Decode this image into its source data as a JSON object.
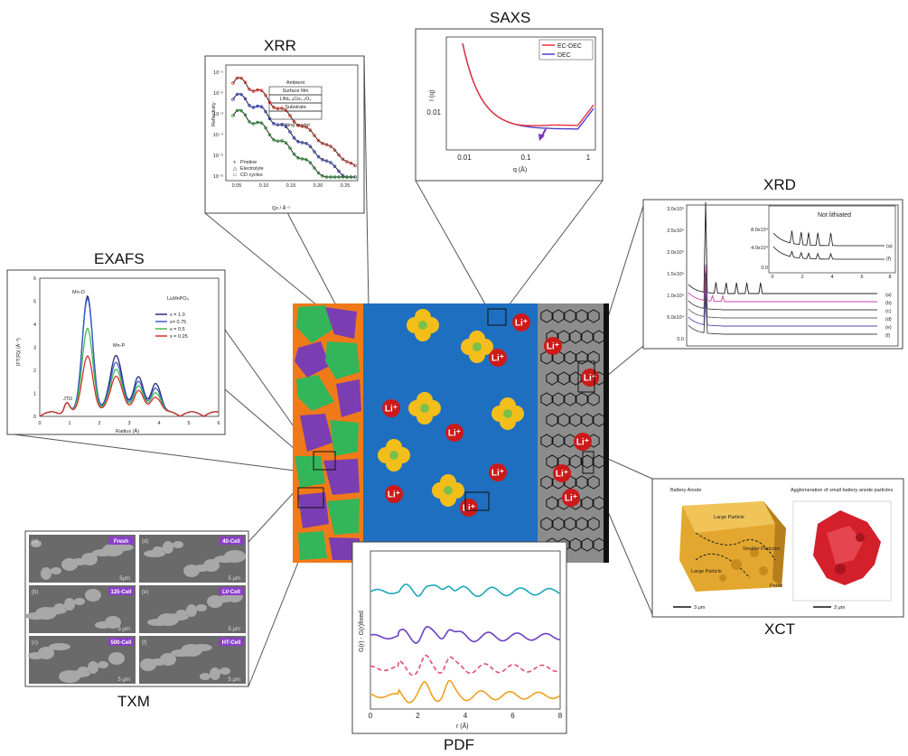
{
  "panels": {
    "saxs": {
      "title": "SAXS",
      "ylabel": "I (q)",
      "xlabel": "q (Å)",
      "yticks": [
        "0.01"
      ],
      "xticks": [
        "0.01",
        "0.1",
        "1"
      ],
      "legend": [
        "EC-DEC",
        "DEC"
      ],
      "colors": {
        "ec_dec": "#e8303a",
        "dec": "#4a3fc9",
        "arrow": "#7a2fc0"
      }
    },
    "xrr": {
      "title": "XRR",
      "ylabel": "Reflectivity",
      "xlabel": "Qz / Å⁻¹",
      "yticks": [
        "10⁻¹",
        "10⁻²",
        "10⁻³",
        "10⁻⁴",
        "10⁻⁵",
        "10⁻⁶"
      ],
      "xticks": [
        "0.05",
        "0.10",
        "0.15",
        "0.20",
        "0.25"
      ],
      "model_layers": [
        "Ambient",
        "Surface film",
        "LiNi₀.₈Co₀.₂O₂",
        "Substrate"
      ],
      "model_caption": "Fitting model",
      "legend": [
        "Pristine",
        "Electrolyte",
        "CD cycles"
      ],
      "colors": {
        "pristine": "#d93a2b",
        "electrolyte": "#3a47b8",
        "cd": "#2f8f3a"
      }
    },
    "exafs": {
      "title": "EXAFS",
      "ylabel": "|FT(R)| (Å⁻³)",
      "xlabel": "Radius (Å)",
      "yticks": [
        "0",
        "1",
        "2",
        "3",
        "4",
        "5",
        "6"
      ],
      "xticks": [
        "0",
        "1",
        "2",
        "3",
        "4",
        "5",
        "6"
      ],
      "compound": "LiₓMnPO₄",
      "legend": [
        "x = 1.0",
        "x= 0.75",
        "x = 0.5",
        "x = 0.25"
      ],
      "peak_labels": [
        "Mn-O",
        "Mn-P",
        "JTD"
      ],
      "colors": [
        "#2a2a7a",
        "#3a5fd0",
        "#3fbf4f",
        "#d83030"
      ]
    },
    "xrd": {
      "title": "XRD",
      "yticks": [
        "3.0x10⁵",
        "2.5x10⁵",
        "2.0x10⁵",
        "1.5x10⁵",
        "1.0x10⁵",
        "5.0x10⁴",
        "0.0"
      ],
      "labels": [
        "(a)",
        "(b)",
        "(c)",
        "(d)",
        "(e)",
        "(f)"
      ],
      "inset_title": "Not lithiated",
      "inset_yticks": [
        "8.0x10⁴",
        "4.0x10⁴",
        "0.0"
      ],
      "inset_xticks": [
        "0",
        "2",
        "4",
        "6",
        "8"
      ],
      "inset_labels": [
        "(a)",
        "(f)"
      ],
      "colors": [
        "#222222",
        "#d43aa8",
        "#444444",
        "#666666",
        "#5b3fb0",
        "#444444"
      ]
    },
    "txm": {
      "title": "TXM",
      "tiles": [
        {
          "letter": "(a)",
          "tag": "Fresh",
          "scale": "5μm"
        },
        {
          "letter": "(d)",
          "tag": "40-Cell",
          "scale": "5 μm"
        },
        {
          "letter": "(b)",
          "tag": "125-Cell",
          "scale": "5 μm"
        },
        {
          "letter": "(e)",
          "tag": "LV-Cell",
          "scale": "5 μm"
        },
        {
          "letter": "(c)",
          "tag": "500-Cell",
          "scale": "5 μm"
        },
        {
          "letter": "(f)",
          "tag": "HT-Cell",
          "scale": "5 μm"
        }
      ],
      "tag_color": "#8a3fc7"
    },
    "xct": {
      "title": "XCT",
      "left_caption": "Battery Anode",
      "right_caption": "Agglomeration of small battery anode particles",
      "region_labels": [
        "Large Particle",
        "Smaller Particles",
        "Large Particle",
        "Pores"
      ],
      "scale": "3 μm",
      "colors": {
        "anode": "#e3a72f",
        "agglomerate": "#d4202a"
      }
    },
    "pdf": {
      "title": "PDF",
      "ylabel": "G(r) - G(r)fixed",
      "xlabel": "r (Å)",
      "xticks": [
        "0",
        "2",
        "4",
        "6",
        "8"
      ],
      "colors": [
        "#1ba8b8",
        "#6a3fc4",
        "#e05070",
        "#f0a020"
      ]
    }
  },
  "cell": {
    "ion_label": "Li⁺",
    "colors": {
      "electrolyte": "#1f6fc0",
      "anode": "#8c8c8c",
      "ion": "#cc1a1a",
      "solvent": "#f4be1a",
      "solvent_core": "#7ac04a",
      "cathode_green": "#33b55a",
      "cathode_purple": "#7b3db2",
      "cathode_orange": "#f07a1a"
    }
  }
}
